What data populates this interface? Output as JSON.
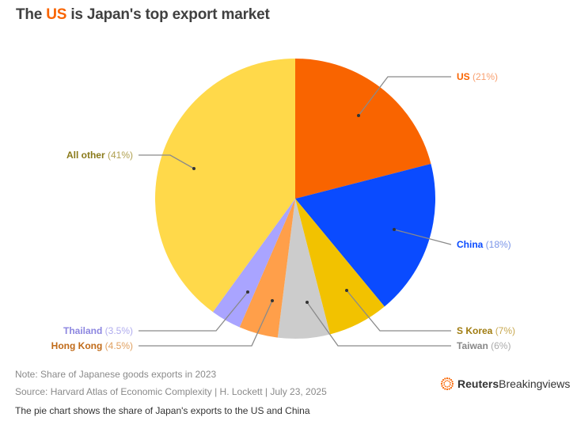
{
  "title": {
    "pre": "The ",
    "highlight": "US",
    "post": " is Japan's top export market"
  },
  "chart_data": {
    "type": "pie",
    "title": "The US is Japan's top export market",
    "start": "top",
    "direction": "clockwise",
    "slices": [
      {
        "label": "US",
        "value": 21,
        "display": "(21%)",
        "color": "#f96400",
        "label_color": "#f96400",
        "value_color": "#f8a070"
      },
      {
        "label": "China",
        "value": 18,
        "display": "(18%)",
        "color": "#0a4bff",
        "label_color": "#0a4bff",
        "value_color": "#7a95e8"
      },
      {
        "label": "S Korea",
        "value": 7,
        "display": "(7%)",
        "color": "#f2c200",
        "label_color": "#a07c10",
        "value_color": "#c8a850"
      },
      {
        "label": "Taiwan",
        "value": 6,
        "display": "(6%)",
        "color": "#cccccc",
        "label_color": "#888888",
        "value_color": "#aaaaaa"
      },
      {
        "label": "Hong Kong",
        "value": 4.5,
        "display": "(4.5%)",
        "color": "#ff9f4a",
        "label_color": "#c06a18",
        "value_color": "#e0a060"
      },
      {
        "label": "Thailand",
        "value": 3.5,
        "display": "(3.5%)",
        "color": "#a9a4ff",
        "label_color": "#8c86e0",
        "value_color": "#b0acee"
      },
      {
        "label": "All other",
        "value": 41,
        "display": "(41%)",
        "color": "#ffd94a",
        "label_color": "#8a7a1a",
        "value_color": "#b0a050"
      }
    ]
  },
  "footer": {
    "note": "Note: Share of Japanese goods exports in 2023",
    "source": "Source: Harvard Atlas of Economic Complexity | H. Lockett | July 23, 2025",
    "description": "The pie chart shows the share of Japan's exports to the US and China",
    "logo_bold": "Reuters",
    "logo_light": "Breakingviews"
  }
}
